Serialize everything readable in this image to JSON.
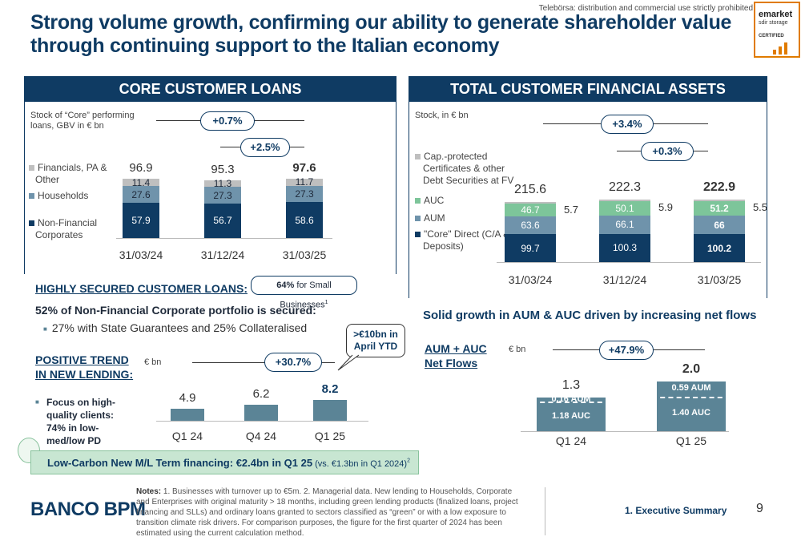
{
  "header": {
    "title": "Strong volume growth, confirming our ability to generate shareholder value through continuing support to the Italian economy",
    "top_note": "Telebörsa: distribution and commercial use strictly prohibited",
    "emarket": {
      "line1": "emarket",
      "line2": "sdir storage",
      "line3": "CERTIFIED"
    }
  },
  "left": {
    "title": "CORE CUSTOMER LOANS",
    "subtitle": "Stock of “Core” performing loans, GBV in € bn",
    "badge_outer": "+0.7%",
    "badge_inner": "+2.5%",
    "legend": [
      "Financials, PA & Other",
      "Households",
      "Non-Financial Corporates"
    ],
    "secured_heading": "HIGHLY SECURED CUSTOMER LOANS:",
    "secured_line": "52% of Non-Financial Corporate portfolio is secured:",
    "secured_bullet": "27% with State Guarantees and 25% Collateralised",
    "small_biz_pct": "64%",
    "small_biz_text": " for Small Businesses",
    "small_biz_sup": "1",
    "lending_heading": "POSITIVE TREND IN NEW LENDING:",
    "lending_unit": "€ bn",
    "lending_badge": "+30.7%",
    "callout": ">€10bn in April YTD",
    "lending_bullet": "Focus on high-quality clients: 74% in low-med/low PD",
    "green_line": "Low-Carbon New M/L Term financing: €2.4bn in Q1 25",
    "green_suffix": " (vs. €1.3bn in Q1 2024)",
    "green_sup": "2"
  },
  "right": {
    "title": "TOTAL CUSTOMER FINANCIAL ASSETS",
    "subtitle": "Stock, in € bn",
    "badge_outer": "+3.4%",
    "badge_inner": "+0.3%",
    "legend": [
      "Cap.-protected Certificates & other Debt Securities at FV",
      "AUC",
      "AUM",
      "\"Core\" Direct (C/A & Deposits)"
    ],
    "growth_heading": "Solid growth in AUM & AUC driven by increasing net flows",
    "flows_heading": "AUM + AUC Net Flows",
    "flows_unit": "€ bn",
    "flows_badge": "+47.9%"
  },
  "footer": {
    "notes_label": "Notes:",
    "notes": " 1. Businesses with turnover up to €5m. 2. Managerial data. New lending to Households, Corporate and Enterprises with original maturity > 18 months, including green lending products (finalized loans, project financing and SLLs) and ordinary loans granted to sectors classified as “green” or with a low exposure to transition climate risk drivers. For comparison purposes, the figure for the first quarter of 2024 has been estimated using the current calculation method.",
    "brand": "BANCO BPM",
    "section": "1. Executive Summary",
    "page": "9"
  },
  "colors": {
    "navy": "#0f3b63",
    "teal": "#5b8496",
    "mint": "#7dc59a",
    "grey": "#bfbfbf",
    "steel": "#6f93ab"
  },
  "chart_data": [
    {
      "type": "bar",
      "name": "core_customer_loans",
      "categories": [
        "31/03/24",
        "31/12/24",
        "31/03/25"
      ],
      "series": [
        {
          "name": "Non-Financial Corporates",
          "values": [
            57.9,
            56.7,
            58.6
          ]
        },
        {
          "name": "Households",
          "values": [
            27.6,
            27.3,
            27.3
          ]
        },
        {
          "name": "Financials, PA & Other",
          "values": [
            11.4,
            11.3,
            11.7
          ]
        }
      ],
      "totals": [
        "96.9",
        "95.3",
        "97.6"
      ]
    },
    {
      "type": "bar",
      "name": "total_customer_financial_assets",
      "categories": [
        "31/03/24",
        "31/12/24",
        "31/03/25"
      ],
      "series": [
        {
          "name": "\"Core\" Direct (C/A & Deposits)",
          "values": [
            99.7,
            100.3,
            100.2
          ]
        },
        {
          "name": "AUM",
          "values": [
            63.6,
            66.1,
            66.0
          ]
        },
        {
          "name": "AUC",
          "values": [
            46.7,
            50.1,
            51.2
          ]
        },
        {
          "name": "Cap.-protected Certificates & other Debt Securities at FV",
          "values": [
            5.7,
            5.9,
            5.5
          ]
        }
      ],
      "totals": [
        "215.6",
        "222.3",
        "222.9"
      ]
    },
    {
      "type": "bar",
      "name": "new_lending",
      "categories": [
        "Q1 24",
        "Q4 24",
        "Q1 25"
      ],
      "values": [
        4.9,
        6.2,
        8.2
      ]
    },
    {
      "type": "bar",
      "name": "net_flows",
      "categories": [
        "Q1 24",
        "Q1 25"
      ],
      "series": [
        {
          "name": "AUC",
          "values": [
            1.18,
            1.4
          ],
          "labels": [
            "1.18 AUC",
            "1.40 AUC"
          ]
        },
        {
          "name": "AUM",
          "values": [
            0.16,
            0.59
          ],
          "labels": [
            "0.16 AUM",
            "0.59 AUM"
          ]
        }
      ],
      "totals": [
        "1.3",
        "2.0"
      ]
    }
  ]
}
